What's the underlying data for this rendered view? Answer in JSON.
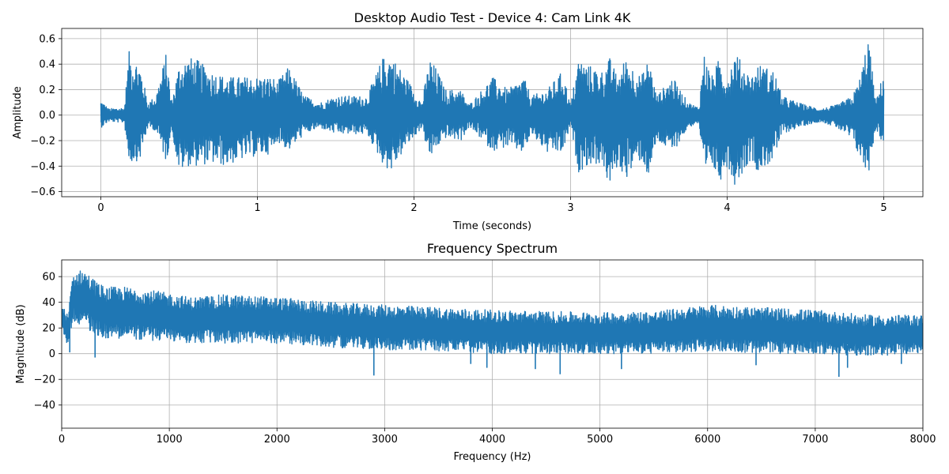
{
  "chart_data": [
    {
      "type": "line",
      "title": "Desktop Audio Test - Device 4: Cam Link 4K",
      "xlabel": "Time (seconds)",
      "ylabel": "Amplitude",
      "xlim": [
        -0.25,
        5.25
      ],
      "ylim": [
        -0.64,
        0.68
      ],
      "xticks": [
        0,
        1,
        2,
        3,
        4,
        5
      ],
      "yticks": [
        -0.6,
        -0.4,
        -0.2,
        0.0,
        0.2,
        0.4,
        0.6
      ],
      "ytick_labels": [
        "−0.6",
        "−0.4",
        "−0.2",
        "0.0",
        "0.2",
        "0.4",
        "0.6"
      ],
      "grid": true,
      "color": "#1f77b4",
      "envelope": {
        "t": [
          0.0,
          0.05,
          0.15,
          0.18,
          0.25,
          0.3,
          0.35,
          0.42,
          0.45,
          0.5,
          0.55,
          0.6,
          0.7,
          0.8,
          0.9,
          1.0,
          1.1,
          1.12,
          1.2,
          1.3,
          1.4,
          1.5,
          1.6,
          1.7,
          1.8,
          1.85,
          1.95,
          2.05,
          2.1,
          2.15,
          2.2,
          2.3,
          2.35,
          2.4,
          2.5,
          2.6,
          2.7,
          2.75,
          2.85,
          2.95,
          3.0,
          3.05,
          3.1,
          3.2,
          3.25,
          3.3,
          3.35,
          3.45,
          3.5,
          3.55,
          3.65,
          3.75,
          3.82,
          3.85,
          3.9,
          3.95,
          4.0,
          4.05,
          4.15,
          4.2,
          4.3,
          4.35,
          4.45,
          4.5,
          4.6,
          4.7,
          4.8,
          4.85,
          4.9,
          4.95,
          5.0
        ],
        "upper": [
          0.12,
          0.05,
          0.06,
          0.5,
          0.4,
          0.1,
          0.15,
          0.5,
          0.1,
          0.4,
          0.45,
          0.45,
          0.35,
          0.3,
          0.3,
          0.3,
          0.3,
          0.25,
          0.38,
          0.15,
          0.1,
          0.15,
          0.15,
          0.15,
          0.45,
          0.48,
          0.3,
          0.1,
          0.45,
          0.35,
          0.2,
          0.2,
          0.08,
          0.15,
          0.3,
          0.2,
          0.3,
          0.15,
          0.2,
          0.35,
          0.08,
          0.45,
          0.4,
          0.35,
          0.45,
          0.3,
          0.45,
          0.3,
          0.45,
          0.15,
          0.3,
          0.1,
          0.06,
          0.5,
          0.3,
          0.45,
          0.3,
          0.5,
          0.3,
          0.4,
          0.35,
          0.15,
          0.1,
          0.08,
          0.05,
          0.08,
          0.15,
          0.3,
          0.63,
          0.1,
          0.35
        ],
        "lower": [
          -0.1,
          -0.05,
          -0.06,
          -0.38,
          -0.35,
          -0.1,
          -0.12,
          -0.38,
          -0.1,
          -0.45,
          -0.4,
          -0.4,
          -0.38,
          -0.4,
          -0.35,
          -0.32,
          -0.3,
          -0.2,
          -0.28,
          -0.15,
          -0.1,
          -0.15,
          -0.15,
          -0.15,
          -0.38,
          -0.45,
          -0.25,
          -0.1,
          -0.35,
          -0.25,
          -0.18,
          -0.2,
          -0.1,
          -0.15,
          -0.28,
          -0.25,
          -0.3,
          -0.15,
          -0.3,
          -0.3,
          -0.08,
          -0.45,
          -0.4,
          -0.38,
          -0.58,
          -0.4,
          -0.5,
          -0.35,
          -0.5,
          -0.2,
          -0.3,
          -0.1,
          -0.06,
          -0.55,
          -0.4,
          -0.53,
          -0.4,
          -0.55,
          -0.35,
          -0.45,
          -0.35,
          -0.15,
          -0.1,
          -0.08,
          -0.05,
          -0.1,
          -0.2,
          -0.35,
          -0.48,
          -0.1,
          -0.25
        ]
      }
    },
    {
      "type": "line",
      "title": "Frequency Spectrum",
      "xlabel": "Frequency (Hz)",
      "ylabel": "Magnitude (dB)",
      "xlim": [
        0,
        8000
      ],
      "ylim": [
        -58,
        73
      ],
      "xticks": [
        0,
        1000,
        2000,
        3000,
        4000,
        5000,
        6000,
        7000,
        8000
      ],
      "yticks": [
        -40,
        -20,
        0,
        20,
        40,
        60
      ],
      "ytick_labels": [
        "−40",
        "−20",
        "0",
        "20",
        "40",
        "60"
      ],
      "grid": true,
      "color": "#1f77b4",
      "envelope": {
        "f": [
          0,
          60,
          100,
          200,
          300,
          400,
          600,
          800,
          1000,
          1200,
          1500,
          2000,
          2500,
          3000,
          3500,
          4000,
          4500,
          5000,
          5500,
          6000,
          6500,
          7000,
          7500,
          8000
        ],
        "upper": [
          38,
          30,
          62,
          66,
          58,
          52,
          52,
          50,
          47,
          44,
          46,
          44,
          40,
          38,
          36,
          34,
          33,
          32,
          33,
          38,
          36,
          34,
          30,
          30
        ],
        "lower": [
          20,
          5,
          25,
          22,
          15,
          12,
          12,
          10,
          10,
          8,
          8,
          8,
          5,
          3,
          2,
          0,
          0,
          0,
          0,
          2,
          0,
          0,
          -2,
          0
        ],
        "dips": [
          [
            75,
            1
          ],
          [
            310,
            -3
          ],
          [
            2900,
            -17
          ],
          [
            3800,
            -8
          ],
          [
            3950,
            -11
          ],
          [
            4400,
            -12
          ],
          [
            4630,
            -16
          ],
          [
            5200,
            -12
          ],
          [
            6450,
            -9
          ],
          [
            7220,
            -18
          ],
          [
            7300,
            -11
          ],
          [
            7800,
            -8
          ]
        ]
      }
    }
  ]
}
